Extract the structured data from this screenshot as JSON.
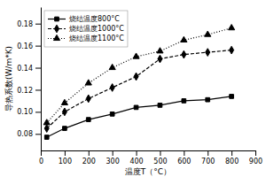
{
  "chart_data": {
    "type": "line",
    "xlabel": "温度T（°C）",
    "ylabel": "导热系数(W/m*K)",
    "x": [
      25,
      100,
      200,
      300,
      400,
      500,
      600,
      700,
      800
    ],
    "xlim": [
      0,
      900
    ],
    "ylim": [
      0.065,
      0.195
    ],
    "xticks": [
      0,
      100,
      200,
      300,
      400,
      500,
      600,
      700,
      800,
      900
    ],
    "yticks": [
      0.08,
      {
        "value": 0.1,
        "label": "0.10"
      },
      0.12,
      0.14,
      0.16,
      0.18
    ],
    "grid": false,
    "legend": "upper left",
    "series": [
      {
        "name": "烧结温度800°C",
        "color": "black",
        "line_style": "solid",
        "marker": "square",
        "values": [
          0.077,
          0.085,
          0.093,
          0.098,
          0.104,
          0.106,
          0.11,
          0.111,
          0.114
        ]
      },
      {
        "name": "烧结温度1000°C",
        "color": "black",
        "line_style": "dashed",
        "marker": "diamond",
        "values": [
          0.085,
          0.1,
          0.112,
          0.122,
          0.132,
          0.148,
          0.152,
          0.154,
          0.156
        ]
      },
      {
        "name": "烧结温度1100°C",
        "color": "black",
        "line_style": "dotted",
        "marker": "triangle",
        "values": [
          0.09,
          0.108,
          0.126,
          0.14,
          0.15,
          0.155,
          0.165,
          0.17,
          0.176
        ]
      }
    ]
  }
}
